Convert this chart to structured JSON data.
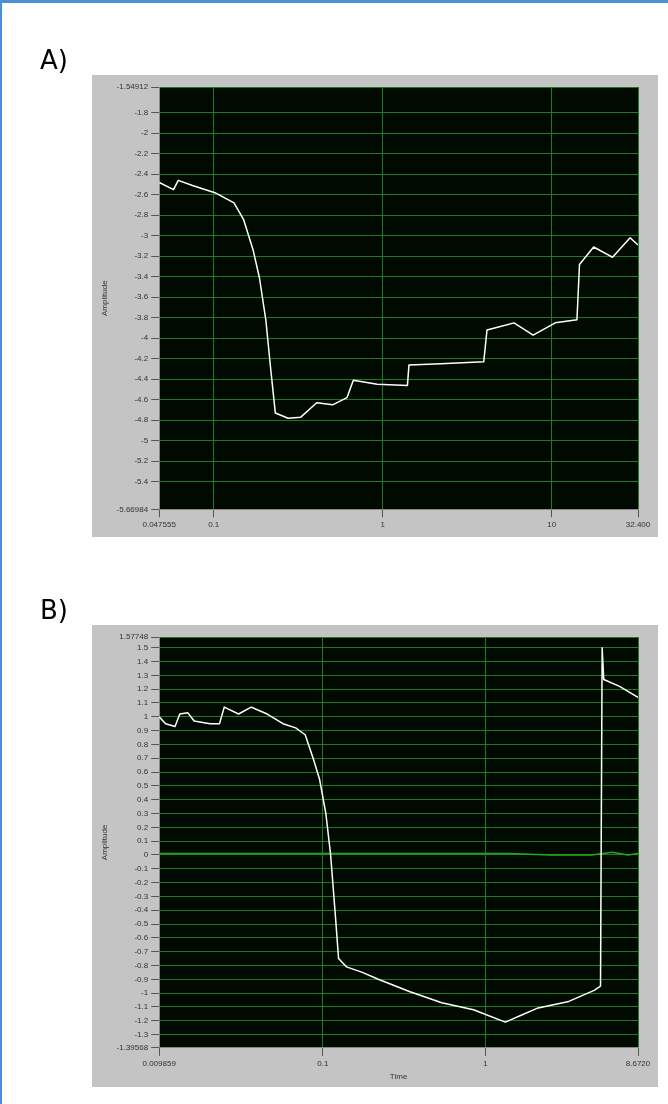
{
  "chart_data": [
    {
      "type": "line",
      "title": "A)",
      "ylabel": "Amplitude",
      "log": "x",
      "grid": true,
      "legend": false,
      "marker": "none",
      "line_style": "solid",
      "xlim": [
        0.047555,
        32.4
      ],
      "xticks": [
        0.047555,
        0.1,
        1,
        10,
        {
          "value": 32.4,
          "label": "32.400"
        }
      ],
      "ylim": [
        -5.66984,
        -1.54912
      ],
      "yticks": [
        -1.54912,
        -1.8,
        -2,
        -2.2,
        -2.4,
        -2.6,
        -2.8,
        -3,
        -3.2,
        -3.4,
        -3.6,
        -3.8,
        -4,
        -4.2,
        -4.4,
        -4.6,
        -4.8,
        -5,
        -5.2,
        -5.4,
        -5.66984
      ],
      "series": [
        {
          "color": "#ffffff",
          "x": [
            0.0476,
            0.0578,
            0.0617,
            0.0749,
            0.1016,
            0.1318,
            0.15,
            0.171,
            0.1864,
            0.2033,
            0.217,
            0.2315,
            0.2754,
            0.3274,
            0.4068,
            0.5053,
            0.6142,
            0.6699,
            0.927,
            1.4,
            1.43,
            2.21,
            3.96,
            4.14,
            5.98,
            7.76,
            10.5,
            14.1,
            14.6,
            17.7,
            22.9,
            29.1,
            32.4
          ],
          "values": [
            -2.48,
            -2.55,
            -2.46,
            -2.51,
            -2.58,
            -2.68,
            -2.84,
            -3.14,
            -3.41,
            -3.82,
            -4.29,
            -4.73,
            -4.78,
            -4.77,
            -4.63,
            -4.65,
            -4.58,
            -4.41,
            -4.45,
            -4.46,
            -4.26,
            -4.25,
            -4.23,
            -3.92,
            -3.85,
            -3.97,
            -3.85,
            -3.82,
            -3.28,
            -3.11,
            -3.21,
            -3.02,
            -3.09
          ]
        }
      ]
    },
    {
      "type": "line",
      "title": "B)",
      "xlabel": "Time",
      "ylabel": "Amplitude",
      "log": "x",
      "grid": true,
      "legend": false,
      "marker": "none",
      "line_style": "solid",
      "xlim": [
        0.009859,
        8.672
      ],
      "xticks": [
        0.009859,
        0.1,
        1,
        {
          "value": 8.672,
          "label": "8.6720"
        }
      ],
      "ylim": [
        -1.39568,
        1.57748
      ],
      "yticks": [
        1.57748,
        1.5,
        1.4,
        1.3,
        1.2,
        1.1,
        1,
        0.9,
        0.8,
        0.7,
        0.6,
        0.5,
        0.4,
        0.3,
        0.2,
        0.1,
        0,
        -0.1,
        -0.2,
        -0.3,
        -0.4,
        -0.5,
        -0.6,
        -0.7,
        -0.8,
        -0.9,
        -1,
        -1.1,
        -1.2,
        -1.3,
        -1.39568
      ],
      "series": [
        {
          "color": "#ffffff",
          "x": [
            0.00986,
            0.0108,
            0.01234,
            0.0132,
            0.01477,
            0.01617,
            0.02024,
            0.02316,
            0.02477,
            0.03033,
            0.0363,
            0.0455,
            0.0569,
            0.0681,
            0.0779,
            0.0872,
            0.0954,
            0.1044,
            0.1117,
            0.1195,
            0.125,
            0.1398,
            0.175,
            0.2193,
            0.3438,
            0.5387,
            0.8444,
            1.324,
            1.658,
            2.076,
            3.253,
            4.661,
            5.1,
            5.22,
            5.34,
            6.68,
            8.672
          ],
          "values": [
            1.0,
            0.95,
            0.93,
            1.02,
            1.03,
            0.97,
            0.95,
            0.95,
            1.07,
            1.02,
            1.07,
            1.02,
            0.95,
            0.92,
            0.87,
            0.7,
            0.55,
            0.3,
            0.0,
            -0.44,
            -0.75,
            -0.81,
            -0.85,
            -0.9,
            -0.99,
            -1.07,
            -1.12,
            -1.21,
            -1.16,
            -1.11,
            -1.06,
            -0.98,
            -0.95,
            1.5,
            1.27,
            1.22,
            1.14
          ]
        },
        {
          "color": "#22aa22",
          "x": [
            0.009859,
            1.4,
            2.5,
            4.5,
            6.0,
            7.5,
            8.672
          ],
          "values": [
            0.01,
            0.01,
            0.0,
            0.0,
            0.02,
            0.0,
            0.01
          ]
        }
      ]
    }
  ]
}
